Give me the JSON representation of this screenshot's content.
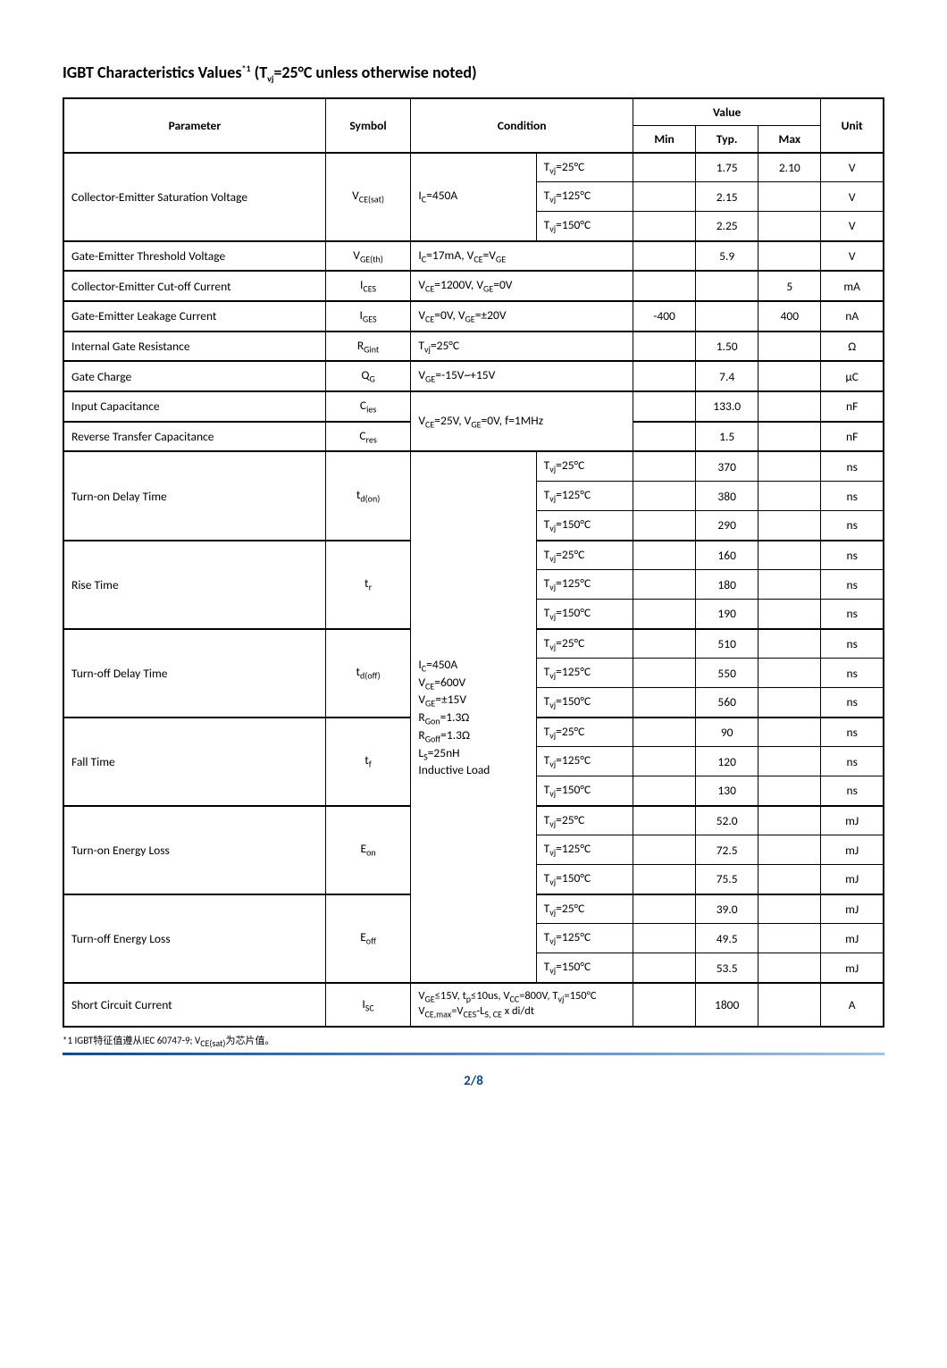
{
  "title_html": "IGBT Characteristics Values<sup>*1</sup> (T<sub>vj</sub>=25°C unless otherwise noted)",
  "headers": {
    "parameter": "Parameter",
    "symbol": "Symbol",
    "condition": "Condition",
    "value": "Value",
    "min": "Min",
    "typ": "Typ.",
    "max": "Max",
    "unit": "Unit"
  },
  "switching_condition_html": "I<sub>C</sub>=450A<br>V<sub>CE</sub>=600V<br>V<sub>GE</sub>=±15V<br>R<sub>Gon</sub>=1.3Ω<br>R<sub>Goff</sub>=1.3Ω<br>L<sub>S</sub>=25nH<br>Inductive Load",
  "temps": {
    "t25": "T<sub>vj</sub>=25°C",
    "t125": "T<sub>vj</sub>=125°C",
    "t150": "T<sub>vj</sub>=150°C"
  },
  "rows": {
    "vcesat": {
      "param": "Collector-Emitter Saturation Voltage",
      "symbol_html": "V<sub>CE(sat)</sub>",
      "cond_html": "I<sub>C</sub>=450A",
      "r1": {
        "typ": "1.75",
        "max": "2.10",
        "unit": "V"
      },
      "r2": {
        "typ": "2.15",
        "unit": "V"
      },
      "r3": {
        "typ": "2.25",
        "unit": "V"
      }
    },
    "vgeth": {
      "param": "Gate-Emitter Threshold Voltage",
      "symbol_html": "V<sub>GE(th)</sub>",
      "cond_html": "I<sub>C</sub>=17mA, V<sub>CE</sub>=V<sub>GE</sub>",
      "typ": "5.9",
      "unit": "V"
    },
    "ices": {
      "param": "Collector-Emitter Cut-off Current",
      "symbol_html": "I<sub>CES</sub>",
      "cond_html": "V<sub>CE</sub>=1200V, V<sub>GE</sub>=0V",
      "max": "5",
      "unit": "mA"
    },
    "iges": {
      "param": "Gate-Emitter Leakage Current",
      "symbol_html": "I<sub>GES</sub>",
      "cond_html": "V<sub>CE</sub>=0V, V<sub>GE</sub>=±20V",
      "min": "-400",
      "max": "400",
      "unit": "nA"
    },
    "rgint": {
      "param": "Internal Gate Resistance",
      "symbol_html": "R<sub>Gint</sub>",
      "cond_html": "T<sub>vj</sub>=25°C",
      "typ": "1.50",
      "unit": "Ω"
    },
    "qg": {
      "param": "Gate Charge",
      "symbol_html": "Q<sub>G</sub>",
      "cond_html": "V<sub>GE</sub>=-15V~+15V",
      "typ": "7.4",
      "unit": "µC"
    },
    "cies": {
      "param": "Input Capacitance",
      "symbol_html": "C<sub>ies</sub>",
      "typ": "133.0",
      "unit": "nF"
    },
    "cres": {
      "param": "Reverse Transfer Capacitance",
      "symbol_html": "C<sub>res</sub>",
      "typ": "1.5",
      "unit": "nF"
    },
    "cap_cond_html": "V<sub>CE</sub>=25V, V<sub>GE</sub>=0V, f=1MHz",
    "tdon": {
      "param": "Turn-on Delay Time",
      "symbol_html": "t<sub>d(on)</sub>",
      "r1": {
        "typ": "370",
        "unit": "ns"
      },
      "r2": {
        "typ": "380",
        "unit": "ns"
      },
      "r3": {
        "typ": "290",
        "unit": "ns"
      }
    },
    "tr": {
      "param": "Rise Time",
      "symbol_html": "t<sub>r</sub>",
      "r1": {
        "typ": "160",
        "unit": "ns"
      },
      "r2": {
        "typ": "180",
        "unit": "ns"
      },
      "r3": {
        "typ": "190",
        "unit": "ns"
      }
    },
    "tdoff": {
      "param": "Turn-off Delay Time",
      "symbol_html": "t<sub>d(off)</sub>",
      "r1": {
        "typ": "510",
        "unit": "ns"
      },
      "r2": {
        "typ": "550",
        "unit": "ns"
      },
      "r3": {
        "typ": "560",
        "unit": "ns"
      }
    },
    "tf": {
      "param": "Fall Time",
      "symbol_html": "t<sub>f</sub>",
      "r1": {
        "typ": "90",
        "unit": "ns"
      },
      "r2": {
        "typ": "120",
        "unit": "ns"
      },
      "r3": {
        "typ": "130",
        "unit": "ns"
      }
    },
    "eon": {
      "param": "Turn-on Energy Loss",
      "symbol_html": "E<sub>on</sub>",
      "r1": {
        "typ": "52.0",
        "unit": "mJ"
      },
      "r2": {
        "typ": "72.5",
        "unit": "mJ"
      },
      "r3": {
        "typ": "75.5",
        "unit": "mJ"
      }
    },
    "eoff": {
      "param": "Turn-off Energy Loss",
      "symbol_html": "E<sub>off</sub>",
      "r1": {
        "typ": "39.0",
        "unit": "mJ"
      },
      "r2": {
        "typ": "49.5",
        "unit": "mJ"
      },
      "r3": {
        "typ": "53.5",
        "unit": "mJ"
      }
    },
    "isc": {
      "param": "Short Circuit Current",
      "symbol_html": "I<sub>SC</sub>",
      "cond_html": "V<sub>GE</sub>≤15V, t<sub>p</sub>≤10us, V<sub>CC</sub>=800V, T<sub>vj</sub>=150°C<br>V<sub>CE,max</sub>=V<sub>CES</sub>-L<sub>S, CE</sub> x di/dt",
      "typ": "1800",
      "unit": "A"
    }
  },
  "footnote_html": "*1 IGBT特征值遵从IEC 60747-9; V<sub>CE(sat)</sub>为芯片值。",
  "page": "2/8",
  "colors": {
    "accent": "#0a4a9e",
    "border": "#000000",
    "background": "#ffffff"
  }
}
